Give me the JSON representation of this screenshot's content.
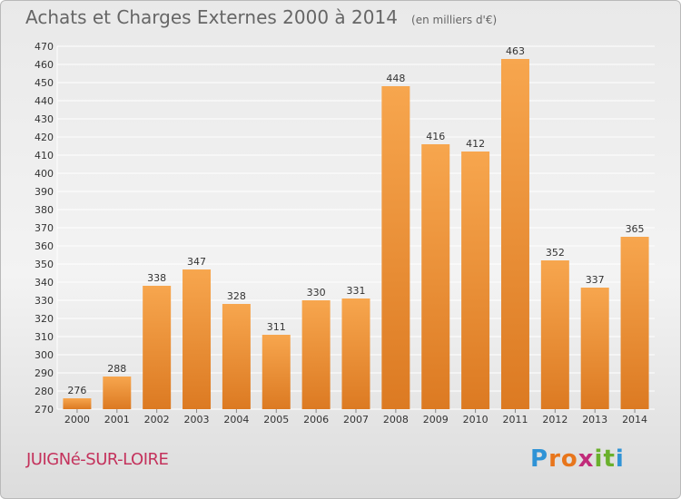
{
  "header": {
    "title": "Achats et Charges Externes 2000 à 2014",
    "unit": "(en milliers d'€)"
  },
  "footer": {
    "commune": "JUIGNé-SUR-LOIRE",
    "logo_text": "Proxiti"
  },
  "colors": {
    "bar_light": "#f7a64e",
    "bar_dark": "#dc7a22",
    "grid": "#ffffff",
    "axis_text": "#333333"
  },
  "chart_data": {
    "type": "bar",
    "title": "Achats et Charges Externes 2000 à 2014",
    "subtitle": "(en milliers d'€)",
    "categories": [
      "2000",
      "2001",
      "2002",
      "2003",
      "2004",
      "2005",
      "2006",
      "2007",
      "2008",
      "2009",
      "2010",
      "2011",
      "2012",
      "2013",
      "2014"
    ],
    "values": [
      276,
      288,
      338,
      347,
      328,
      311,
      330,
      331,
      448,
      416,
      412,
      463,
      352,
      337,
      365
    ],
    "ylim": [
      270,
      470
    ],
    "ytick_step": 10,
    "grid": true,
    "xlabel": "",
    "ylabel": ""
  }
}
